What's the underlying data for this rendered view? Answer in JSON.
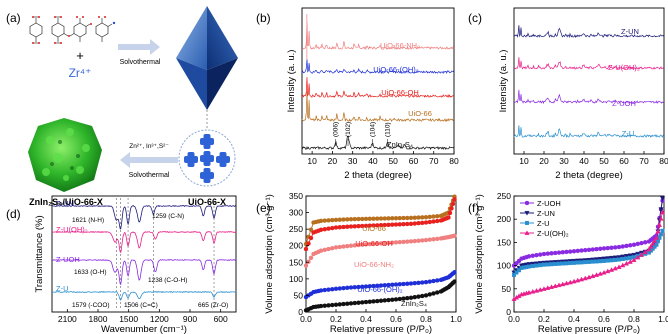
{
  "panel_labels": [
    "(a)",
    "(b)",
    "(c)",
    "(d)",
    "(e)",
    "(f)"
  ],
  "schematic": {
    "metal_ion": "Zr⁴⁺",
    "plus": "+",
    "step1": "Solvothermal",
    "reagents": "Zn²⁺, In³⁺,S²⁻",
    "step2": "Solvothermal",
    "product_left": "ZnIn₂S₄/UiO-66-X",
    "product_right": "UiO-66-X"
  },
  "colors": {
    "nh2": "#f08080",
    "oh2": "#1f2fd8",
    "oh": "#e8201e",
    "uio": "#b8701f",
    "zis": "#111111",
    "zun": "#1a1a7a",
    "zuoh2": "#e81e8a",
    "zuoh": "#8a2be2",
    "zu": "#2a8fd0"
  },
  "chart_data": [
    {
      "panel": "b",
      "type": "line",
      "xlabel": "2 theta (degree)",
      "ylabel": "Intensity (a. u.)",
      "x_ticks": [
        "10",
        "20",
        "30",
        "40",
        "50",
        "60",
        "70",
        "80"
      ],
      "xlim": [
        5,
        80
      ],
      "series": [
        {
          "name": "UiO-66-NH₂",
          "color": "#f08080"
        },
        {
          "name": "UiO-66-(OH)₂",
          "color": "#1f2fd8"
        },
        {
          "name": "UiO-66-OH",
          "color": "#e8201e"
        },
        {
          "name": "UiO-66",
          "color": "#b8701f"
        },
        {
          "name": "ZnIn₂S₄",
          "color": "#111111"
        }
      ],
      "annotations": [
        "(006)",
        "(102)",
        "(104)",
        "(110)"
      ],
      "annotation_x": [
        21.6,
        27.7,
        39.8,
        47.2
      ]
    },
    {
      "panel": "c",
      "type": "line",
      "xlabel": "2 theta (degree)",
      "ylabel": "Intensity (a. u.)",
      "x_ticks": [
        "10",
        "20",
        "30",
        "40",
        "50",
        "60",
        "70",
        "80"
      ],
      "xlim": [
        5,
        80
      ],
      "series": [
        {
          "name": "Z-UN",
          "color": "#1a1a7a"
        },
        {
          "name": "Z-U(OH)₂",
          "color": "#e81e8a"
        },
        {
          "name": "Z-UOH",
          "color": "#8a2be2"
        },
        {
          "name": "Z-U",
          "color": "#2a8fd0"
        }
      ]
    },
    {
      "panel": "d",
      "type": "line",
      "xlabel": "Wavenumber (cm⁻¹)",
      "ylabel": "Transmittance (%)",
      "x_ticks": [
        "2100",
        "1800",
        "1500",
        "1200",
        "900",
        "600"
      ],
      "xlim": [
        2250,
        450
      ],
      "series": [
        {
          "name": "Z-UN",
          "color": "#1a1a7a"
        },
        {
          "name": "Z-U(OH)₂",
          "color": "#e81e8a"
        },
        {
          "name": "Z-UOH",
          "color": "#8a2be2"
        },
        {
          "name": "Z-U",
          "color": "#2a8fd0"
        }
      ],
      "annotations": [
        "1621 (N-H)",
        "1259 (C-N)",
        "1633 (O-H)",
        "1238 (C-O-H)",
        "1579 (-COO)",
        "1506 (C=C)",
        "665 (Zr-O)"
      ],
      "dashed_lines_x": [
        1621,
        1579,
        1506,
        1259,
        665
      ]
    },
    {
      "panel": "e",
      "type": "line",
      "xlabel": "Relative pressure (P/P₀)",
      "ylabel": "Volume adsorption (cm³ g⁻¹)",
      "x_ticks": [
        "0.0",
        "0.2",
        "0.4",
        "0.6",
        "0.8",
        "1.0"
      ],
      "y_ticks": [
        "0",
        "50",
        "100",
        "150",
        "200",
        "250",
        "300",
        "350"
      ],
      "xlim": [
        0,
        1
      ],
      "ylim": [
        0,
        350
      ],
      "series": [
        {
          "name": "UiO-66",
          "color": "#b8701f",
          "x": [
            0.0,
            0.05,
            0.1,
            0.2,
            0.3,
            0.4,
            0.5,
            0.6,
            0.7,
            0.8,
            0.9,
            0.95,
            0.99
          ],
          "y": [
            205,
            270,
            275,
            278,
            280,
            281,
            282,
            283,
            284,
            286,
            290,
            300,
            348
          ]
        },
        {
          "name": "UiO-66-OH",
          "color": "#e8201e",
          "x": [
            0.0,
            0.05,
            0.1,
            0.2,
            0.3,
            0.4,
            0.5,
            0.6,
            0.7,
            0.8,
            0.9,
            0.95,
            0.99
          ],
          "y": [
            190,
            240,
            248,
            255,
            258,
            260,
            262,
            264,
            266,
            270,
            276,
            285,
            340
          ]
        },
        {
          "name": "UiO-66-NH₂",
          "color": "#f08080",
          "x": [
            0.0,
            0.05,
            0.1,
            0.2,
            0.3,
            0.4,
            0.5,
            0.6,
            0.7,
            0.8,
            0.9,
            0.95,
            0.99
          ],
          "y": [
            140,
            175,
            185,
            195,
            200,
            204,
            207,
            210,
            213,
            217,
            222,
            226,
            230
          ]
        },
        {
          "name": "UiO-66-(OH)₂",
          "color": "#1f2fd8",
          "x": [
            0.0,
            0.05,
            0.1,
            0.2,
            0.3,
            0.4,
            0.5,
            0.6,
            0.7,
            0.8,
            0.9,
            0.95,
            0.99
          ],
          "y": [
            45,
            60,
            65,
            70,
            74,
            77,
            80,
            83,
            86,
            90,
            97,
            105,
            120
          ]
        },
        {
          "name": "ZnIn₂S₄",
          "color": "#111111",
          "x": [
            0.0,
            0.05,
            0.1,
            0.2,
            0.3,
            0.4,
            0.5,
            0.6,
            0.7,
            0.8,
            0.9,
            0.95,
            0.99
          ],
          "y": [
            5,
            15,
            18,
            22,
            26,
            30,
            34,
            38,
            43,
            50,
            62,
            75,
            92
          ]
        }
      ]
    },
    {
      "panel": "f",
      "type": "line",
      "xlabel": "Relative pressure (P/P₀)",
      "ylabel": "Volume adsorption (cm³ g⁻¹)",
      "x_ticks": [
        "0.0",
        "0.2",
        "0.4",
        "0.6",
        "0.8",
        "1.0"
      ],
      "y_ticks": [
        "0",
        "50",
        "100",
        "150",
        "200",
        "250"
      ],
      "xlim": [
        0,
        1
      ],
      "ylim": [
        0,
        250
      ],
      "series": [
        {
          "name": "Z-UOH",
          "color": "#8a2be2",
          "x": [
            0.0,
            0.05,
            0.1,
            0.2,
            0.3,
            0.4,
            0.5,
            0.6,
            0.7,
            0.8,
            0.9,
            0.95,
            0.99
          ],
          "y": [
            100,
            115,
            120,
            125,
            128,
            131,
            134,
            137,
            140,
            145,
            152,
            165,
            240
          ]
        },
        {
          "name": "Z-UN",
          "color": "#1a1a7a",
          "x": [
            0.0,
            0.05,
            0.1,
            0.2,
            0.3,
            0.4,
            0.5,
            0.6,
            0.7,
            0.8,
            0.9,
            0.95,
            0.99
          ],
          "y": [
            85,
            100,
            103,
            106,
            108,
            110,
            112,
            115,
            118,
            123,
            132,
            150,
            245
          ]
        },
        {
          "name": "Z-U",
          "color": "#2a8fd0",
          "x": [
            0.0,
            0.05,
            0.1,
            0.2,
            0.3,
            0.4,
            0.5,
            0.6,
            0.7,
            0.8,
            0.9,
            0.95,
            0.99
          ],
          "y": [
            80,
            95,
            98,
            102,
            104,
            106,
            108,
            110,
            113,
            118,
            128,
            145,
            175
          ]
        },
        {
          "name": "Z-U(OH)₂",
          "color": "#e81e8a",
          "x": [
            0.0,
            0.05,
            0.1,
            0.2,
            0.3,
            0.4,
            0.5,
            0.6,
            0.7,
            0.8,
            0.9,
            0.95,
            0.99
          ],
          "y": [
            28,
            38,
            42,
            50,
            58,
            66,
            75,
            85,
            97,
            112,
            135,
            160,
            215
          ]
        }
      ]
    }
  ]
}
